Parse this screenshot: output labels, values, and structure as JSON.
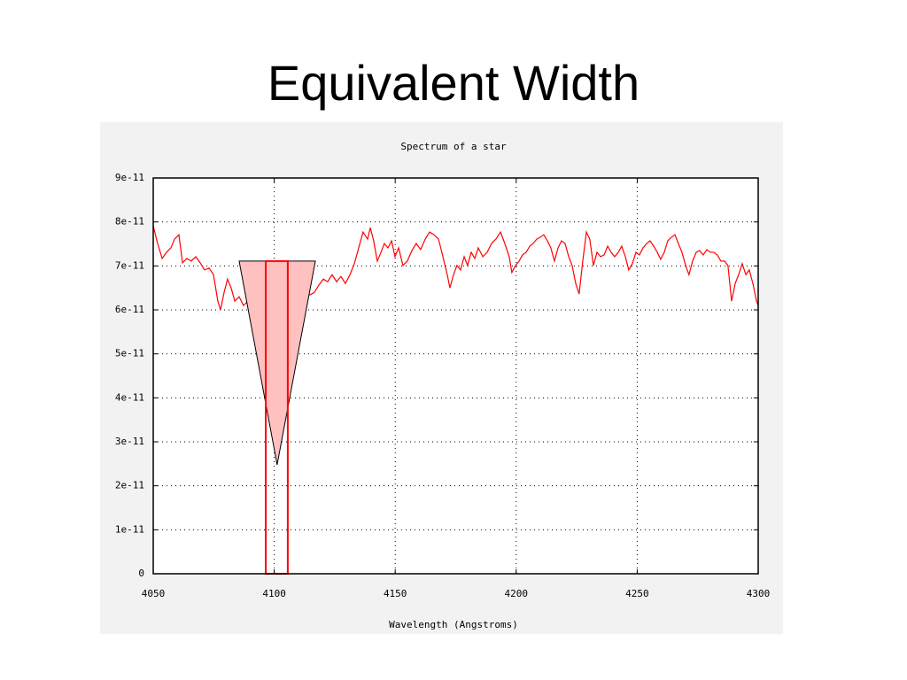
{
  "title": "Equivalent Width",
  "chart_data": {
    "type": "line",
    "title": "Spectrum of a star",
    "x_label": "Wavelength (Angstroms)",
    "xlim": [
      4050,
      4300
    ],
    "xticks": [
      4050,
      4100,
      4150,
      4200,
      4250,
      4300
    ],
    "ylim": [
      0,
      9e-11
    ],
    "yticks": [
      0,
      1e-11,
      2e-11,
      3e-11,
      4e-11,
      5e-11,
      6e-11,
      7e-11,
      8e-11,
      9e-11
    ],
    "grid": true,
    "series": [
      {
        "color": "#ff0000",
        "x": [
          4050.0,
          4051.8,
          4053.7,
          4055.5,
          4057.3,
          4058.8,
          4060.6,
          4062.1,
          4063.9,
          4065.7,
          4067.6,
          4069.4,
          4071.2,
          4073.1,
          4074.9,
          4076.7,
          4077.8,
          4079.3,
          4080.7,
          4082.2,
          4083.7,
          4085.5,
          4087.3,
          4089.2,
          4091.0,
          4092.8,
          4094.7,
          4096.5,
          4098.3,
          4100.1,
          4101.2,
          4102.3,
          4103.8,
          4105.6,
          4107.5,
          4109.3,
          4111.1,
          4113.0,
          4114.8,
          4116.6,
          4118.4,
          4120.3,
          4122.1,
          4123.9,
          4125.8,
          4127.6,
          4129.4,
          4131.3,
          4133.1,
          4134.9,
          4136.7,
          4138.6,
          4139.7,
          4141.1,
          4142.6,
          4144.1,
          4145.5,
          4147.0,
          4148.5,
          4149.9,
          4151.4,
          4153.2,
          4155.0,
          4156.9,
          4158.7,
          4160.5,
          4162.4,
          4164.2,
          4166.0,
          4167.9,
          4169.7,
          4171.5,
          4172.6,
          4174.1,
          4175.5,
          4177.0,
          4178.5,
          4179.9,
          4181.4,
          4182.9,
          4184.3,
          4186.2,
          4188.0,
          4189.8,
          4191.6,
          4193.5,
          4195.3,
          4197.1,
          4198.2,
          4199.7,
          4201.2,
          4202.6,
          4204.1,
          4205.6,
          4207.0,
          4208.5,
          4209.9,
          4211.4,
          4212.9,
          4214.3,
          4215.8,
          4217.3,
          4218.7,
          4220.2,
          4221.7,
          4223.1,
          4224.6,
          4226.0,
          4227.5,
          4229.0,
          4230.4,
          4231.9,
          4233.4,
          4234.8,
          4236.3,
          4237.8,
          4239.2,
          4240.7,
          4242.2,
          4243.6,
          4245.1,
          4246.5,
          4248.0,
          4249.5,
          4250.9,
          4252.4,
          4253.9,
          4255.3,
          4256.8,
          4258.3,
          4259.7,
          4261.2,
          4262.6,
          4264.1,
          4265.6,
          4267.0,
          4268.5,
          4270.0,
          4271.4,
          4272.9,
          4274.4,
          4275.8,
          4277.3,
          4278.8,
          4280.2,
          4281.7,
          4283.1,
          4284.6,
          4286.1,
          4287.5,
          4289.0,
          4290.5,
          4291.9,
          4293.4,
          4294.9,
          4296.3,
          4297.8,
          4299.3,
          4300.0
        ],
        "values": [
          7.91e-11,
          7.51e-11,
          7.17e-11,
          7.31e-11,
          7.41e-11,
          7.61e-11,
          7.71e-11,
          7.07e-11,
          7.17e-11,
          7.11e-11,
          7.21e-11,
          7.07e-11,
          6.91e-11,
          6.95e-11,
          6.8e-11,
          6.2e-11,
          6e-11,
          6.4e-11,
          6.7e-11,
          6.5e-11,
          6.2e-11,
          6.3e-11,
          6.1e-11,
          6.2e-11,
          6e-11,
          5.8e-11,
          5.4e-11,
          4.79e-11,
          3.99e-11,
          2.98e-11,
          2.48e-11,
          3.18e-11,
          4.39e-11,
          5.19e-11,
          5.7e-11,
          6.1e-11,
          6.3e-11,
          6.4e-11,
          6.34e-11,
          6.4e-11,
          6.56e-11,
          6.7e-11,
          6.64e-11,
          6.8e-11,
          6.64e-11,
          6.76e-11,
          6.6e-11,
          6.8e-11,
          7.05e-11,
          7.41e-11,
          7.77e-11,
          7.61e-11,
          7.87e-11,
          7.57e-11,
          7.11e-11,
          7.31e-11,
          7.51e-11,
          7.41e-11,
          7.57e-11,
          7.21e-11,
          7.41e-11,
          7.01e-11,
          7.11e-11,
          7.35e-11,
          7.51e-11,
          7.37e-11,
          7.61e-11,
          7.77e-11,
          7.71e-11,
          7.61e-11,
          7.21e-11,
          6.8e-11,
          6.5e-11,
          6.8e-11,
          7.01e-11,
          6.91e-11,
          7.21e-11,
          7.01e-11,
          7.31e-11,
          7.17e-11,
          7.41e-11,
          7.21e-11,
          7.31e-11,
          7.51e-11,
          7.61e-11,
          7.77e-11,
          7.51e-11,
          7.21e-11,
          6.85e-11,
          7.01e-11,
          7.11e-11,
          7.25e-11,
          7.31e-11,
          7.45e-11,
          7.51e-11,
          7.61e-11,
          7.65e-11,
          7.71e-11,
          7.57e-11,
          7.41e-11,
          7.11e-11,
          7.41e-11,
          7.57e-11,
          7.51e-11,
          7.21e-11,
          7.01e-11,
          6.6e-11,
          6.36e-11,
          7.11e-11,
          7.77e-11,
          7.61e-11,
          7.01e-11,
          7.31e-11,
          7.21e-11,
          7.25e-11,
          7.45e-11,
          7.31e-11,
          7.21e-11,
          7.31e-11,
          7.45e-11,
          7.21e-11,
          6.91e-11,
          7.05e-11,
          7.31e-11,
          7.25e-11,
          7.41e-11,
          7.51e-11,
          7.57e-11,
          7.45e-11,
          7.31e-11,
          7.15e-11,
          7.31e-11,
          7.57e-11,
          7.65e-11,
          7.71e-11,
          7.51e-11,
          7.31e-11,
          7.01e-11,
          6.8e-11,
          7.11e-11,
          7.31e-11,
          7.35e-11,
          7.25e-11,
          7.37e-11,
          7.31e-11,
          7.31e-11,
          7.25e-11,
          7.11e-11,
          7.11e-11,
          7.01e-11,
          6.2e-11,
          6.6e-11,
          6.8e-11,
          7.05e-11,
          6.8e-11,
          6.91e-11,
          6.6e-11,
          6.2e-11,
          6.1e-11
        ]
      }
    ],
    "annotations": {
      "triangle": {
        "color": "#ffc0c0",
        "x": [
          4085.5,
          4117.0,
          4101.2
        ],
        "y": [
          7.11e-11,
          7.11e-11,
          2.48e-11
        ]
      },
      "box": {
        "color": "#ff0000",
        "x": [
          4096.5,
          4105.6
        ],
        "y": [
          0,
          7.11e-11
        ]
      }
    }
  }
}
